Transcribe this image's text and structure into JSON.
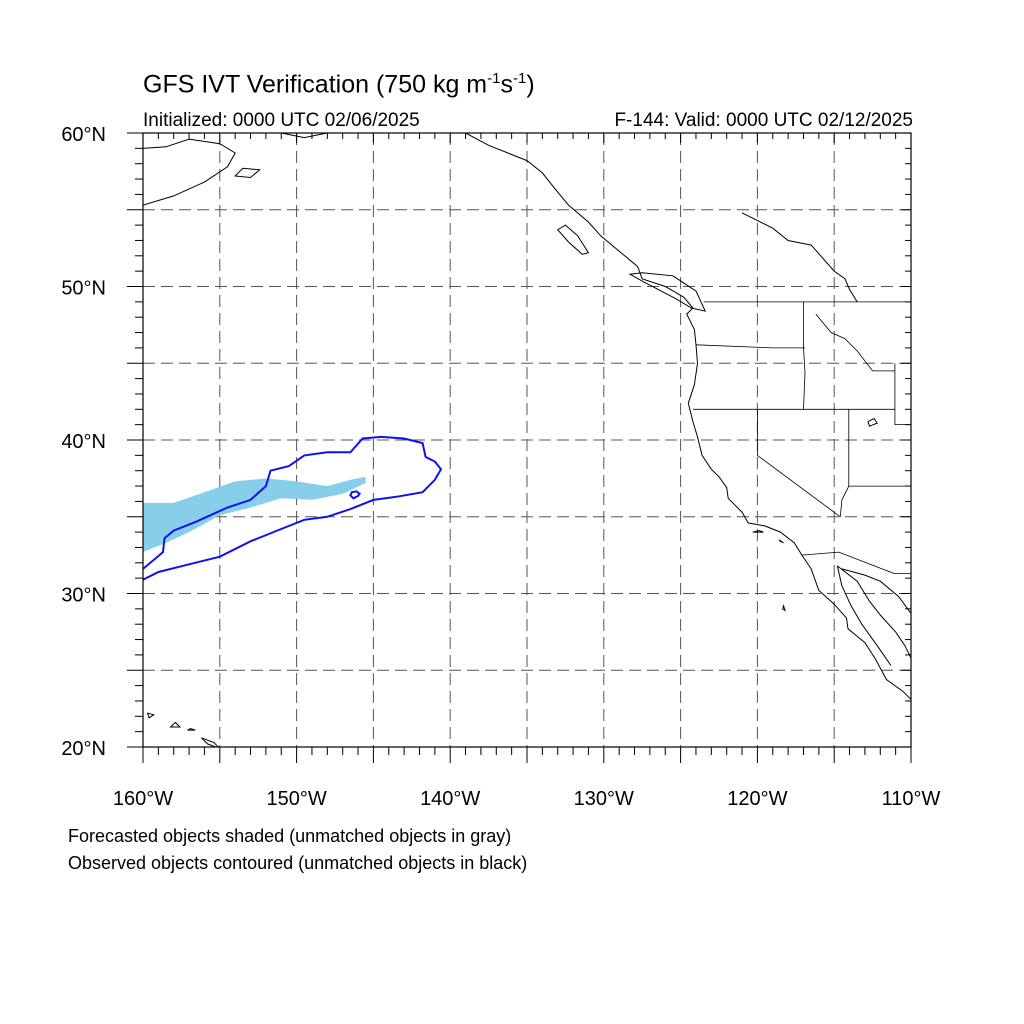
{
  "header": {
    "title_main": "GFS IVT Verification (750 kg m",
    "title_exp1": "-1",
    "title_mid": "s",
    "title_exp2": "-1",
    "title_end": ")",
    "initialized": "Initialized: 0000 UTC 02/06/2025",
    "valid": "F-144: Valid: 0000 UTC 02/12/2025"
  },
  "legend": {
    "line1": "Forecasted objects shaded (unmatched objects in gray)",
    "line2": "Observed objects contoured (unmatched objects in black)"
  },
  "map": {
    "lon_range": [
      -160,
      -110
    ],
    "lat_range": [
      20,
      60
    ],
    "lon_ticks": [
      {
        "value": -160,
        "label": "160°W"
      },
      {
        "value": -150,
        "label": "150°W"
      },
      {
        "value": -140,
        "label": "140°W"
      },
      {
        "value": -130,
        "label": "130°W"
      },
      {
        "value": -120,
        "label": "120°W"
      },
      {
        "value": -110,
        "label": "110°W"
      }
    ],
    "lat_ticks": [
      {
        "value": 20,
        "label": "20°N"
      },
      {
        "value": 30,
        "label": "30°N"
      },
      {
        "value": 40,
        "label": "40°N"
      },
      {
        "value": 50,
        "label": "50°N"
      },
      {
        "value": 60,
        "label": "60°N"
      }
    ],
    "gridline_lons": [
      -155,
      -150,
      -145,
      -140,
      -135,
      -130,
      -125,
      -120,
      -115
    ],
    "gridline_lats": [
      25,
      30,
      35,
      40,
      45,
      50,
      55
    ],
    "colors": {
      "forecast_fill": "#87ceeb",
      "observed_contour": "#1111ee",
      "coastline": "#000000",
      "grid": "#555555"
    },
    "forecast_object": [
      [
        -160,
        35.9
      ],
      [
        -158,
        35.9
      ],
      [
        -156,
        36.6
      ],
      [
        -154,
        37.3
      ],
      [
        -152,
        37.5
      ],
      [
        -150,
        37.3
      ],
      [
        -148,
        37.0
      ],
      [
        -146.5,
        37.4
      ],
      [
        -145.5,
        37.6
      ],
      [
        -145.5,
        37.2
      ],
      [
        -147,
        36.5
      ],
      [
        -149,
        36.1
      ],
      [
        -151,
        36.2
      ],
      [
        -153,
        35.6
      ],
      [
        -155,
        35.1
      ],
      [
        -157,
        34.0
      ],
      [
        -158.5,
        33.3
      ],
      [
        -160,
        32.7
      ]
    ],
    "observed_object": [
      [
        -160,
        30.9
      ],
      [
        -159,
        31.4
      ],
      [
        -157,
        31.9
      ],
      [
        -155,
        32.4
      ],
      [
        -153,
        33.4
      ],
      [
        -151,
        34.2
      ],
      [
        -149.5,
        34.8
      ],
      [
        -148,
        35.0
      ],
      [
        -146.5,
        35.5
      ],
      [
        -145,
        36.1
      ],
      [
        -143.5,
        36.3
      ],
      [
        -141.8,
        36.6
      ],
      [
        -141,
        37.4
      ],
      [
        -140.6,
        38.1
      ],
      [
        -141,
        38.6
      ],
      [
        -141.6,
        38.9
      ],
      [
        -141.8,
        39.8
      ],
      [
        -143,
        40.1
      ],
      [
        -144.5,
        40.2
      ],
      [
        -145.7,
        40.1
      ],
      [
        -146.5,
        39.2
      ],
      [
        -148,
        39.2
      ],
      [
        -149.5,
        39.0
      ],
      [
        -150.5,
        38.3
      ],
      [
        -151.7,
        38.0
      ],
      [
        -152,
        37.0
      ],
      [
        -153,
        36.1
      ],
      [
        -154.5,
        35.6
      ],
      [
        -156.5,
        34.7
      ],
      [
        -158,
        34.1
      ],
      [
        -158.6,
        33.6
      ],
      [
        -158.7,
        32.7
      ],
      [
        -160,
        31.6
      ],
      [
        -160.5,
        31.0
      ],
      [
        -160,
        30.9
      ]
    ],
    "observed_small_loop": [
      [
        -146.3,
        36.2
      ],
      [
        -146.0,
        36.35
      ],
      [
        -145.9,
        36.5
      ],
      [
        -146.1,
        36.65
      ],
      [
        -146.4,
        36.6
      ],
      [
        -146.5,
        36.4
      ],
      [
        -146.3,
        36.2
      ]
    ],
    "coast_main": [
      [
        -139,
        60
      ],
      [
        -137.5,
        59.2
      ],
      [
        -136,
        58.6
      ],
      [
        -135,
        58.2
      ],
      [
        -134,
        57.4
      ],
      [
        -133.2,
        56.4
      ],
      [
        -132.3,
        55.3
      ],
      [
        -131,
        54.2
      ],
      [
        -130.2,
        53.3
      ],
      [
        -129,
        52.3
      ],
      [
        -127.8,
        51.3
      ],
      [
        -127.5,
        50.5
      ],
      [
        -126,
        50.0
      ],
      [
        -124.8,
        49.3
      ],
      [
        -124.2,
        48.6
      ],
      [
        -124.6,
        48.2
      ],
      [
        -124.1,
        47.2
      ],
      [
        -124.0,
        46.2
      ],
      [
        -123.9,
        45.0
      ],
      [
        -124.1,
        43.6
      ],
      [
        -124.5,
        42.4
      ],
      [
        -124.2,
        41.2
      ],
      [
        -123.9,
        40.2
      ],
      [
        -123.6,
        39.0
      ],
      [
        -123.0,
        38.1
      ],
      [
        -122.5,
        37.6
      ],
      [
        -122.0,
        36.9
      ],
      [
        -121.9,
        36.2
      ],
      [
        -121.0,
        35.3
      ],
      [
        -120.6,
        34.6
      ],
      [
        -119.5,
        34.4
      ],
      [
        -118.5,
        34.0
      ],
      [
        -117.6,
        33.3
      ],
      [
        -117.1,
        32.5
      ],
      [
        -116.5,
        31.6
      ],
      [
        -116.0,
        30.2
      ],
      [
        -115.0,
        29.3
      ],
      [
        -114.2,
        28.4
      ],
      [
        -114.1,
        27.7
      ],
      [
        -113.0,
        26.8
      ],
      [
        -112.3,
        25.7
      ],
      [
        -111.6,
        24.4
      ],
      [
        -110.5,
        23.6
      ],
      [
        -110,
        23.1
      ]
    ],
    "coast_alaska": [
      [
        -160,
        55.3
      ],
      [
        -158,
        55.9
      ],
      [
        -156,
        56.8
      ],
      [
        -154.5,
        57.8
      ],
      [
        -154,
        58.7
      ],
      [
        -155,
        59.3
      ],
      [
        -157,
        59.6
      ],
      [
        -158.5,
        59.1
      ],
      [
        -160,
        59.0
      ]
    ],
    "coast_gulf": [
      [
        -151,
        60
      ],
      [
        -149.5,
        59.7
      ],
      [
        -148,
        60
      ],
      [
        -146,
        60.2
      ],
      [
        -144,
        60
      ]
    ],
    "coast_hudson": [
      [
        -121,
        54.8
      ],
      [
        -119,
        53.8
      ],
      [
        -118,
        53.0
      ],
      [
        -116.5,
        52.7
      ],
      [
        -115,
        51.0
      ],
      [
        -114.3,
        50.5
      ],
      [
        -114,
        49.8
      ],
      [
        -113.5,
        49.0
      ]
    ],
    "gulf_california": [
      [
        -114.8,
        31.8
      ],
      [
        -113.5,
        30.8
      ],
      [
        -112.7,
        29.5
      ],
      [
        -112.0,
        28.6
      ],
      [
        -111.0,
        27.5
      ],
      [
        -110.4,
        26.6
      ],
      [
        -110,
        25.8
      ]
    ],
    "baja_inner": [
      [
        -114.8,
        31.8
      ],
      [
        -114.5,
        30.5
      ],
      [
        -113.9,
        29.2
      ],
      [
        -113.2,
        28.0
      ],
      [
        -112.2,
        26.6
      ],
      [
        -111.3,
        25.3
      ]
    ],
    "mainland_mexico": [
      [
        -114.5,
        31.6
      ],
      [
        -113.0,
        31.2
      ],
      [
        -112.0,
        30.8
      ],
      [
        -110.8,
        29.8
      ],
      [
        -110,
        28.7
      ]
    ],
    "borders": [
      [
        [
          -123.5,
          49
        ],
        [
          -110,
          49
        ]
      ],
      [
        [
          -124.2,
          42
        ],
        [
          -111.05,
          42
        ]
      ],
      [
        [
          -120,
          42
        ],
        [
          -120,
          39
        ],
        [
          -114.6,
          35
        ]
      ],
      [
        [
          -117,
          49
        ],
        [
          -117,
          46.0
        ],
        [
          -116.9,
          44.4
        ],
        [
          -117,
          42
        ]
      ],
      [
        [
          -124.0,
          46.2
        ],
        [
          -119,
          46.0
        ],
        [
          -116.9,
          46.0
        ]
      ],
      [
        [
          -114.05,
          42
        ],
        [
          -114.05,
          37
        ],
        [
          -114.5,
          36.1
        ],
        [
          -114.6,
          35
        ]
      ],
      [
        [
          -114.05,
          37
        ],
        [
          -110,
          37
        ]
      ],
      [
        [
          -111.05,
          45
        ],
        [
          -111.05,
          41
        ],
        [
          -110,
          41
        ]
      ],
      [
        [
          -116.2,
          48.2
        ],
        [
          -115.2,
          47
        ],
        [
          -114.3,
          46.6
        ],
        [
          -113.5,
          45.8
        ],
        [
          -112.5,
          44.5
        ],
        [
          -111.05,
          44.5
        ]
      ],
      [
        [
          -117.1,
          32.5
        ],
        [
          -114.7,
          32.7
        ],
        [
          -111.1,
          31.3
        ],
        [
          -110,
          31.3
        ]
      ]
    ],
    "islands": [
      [
        [
          -125.5,
          50.7
        ],
        [
          -124.0,
          49.7
        ],
        [
          -123.4,
          48.4
        ],
        [
          -124.3,
          48.6
        ],
        [
          -125.3,
          49.2
        ],
        [
          -127.4,
          50.3
        ],
        [
          -128.3,
          50.8
        ],
        [
          -127.5,
          50.9
        ],
        [
          -125.5,
          50.7
        ]
      ],
      [
        [
          -132.5,
          54.0
        ],
        [
          -131.7,
          53.3
        ],
        [
          -131.0,
          52.2
        ],
        [
          -131.4,
          52.1
        ],
        [
          -132.3,
          52.9
        ],
        [
          -133.0,
          53.7
        ],
        [
          -132.5,
          54.0
        ]
      ],
      [
        [
          -156.2,
          20.6
        ],
        [
          -155.8,
          20.2
        ],
        [
          -155.0,
          19.9
        ],
        [
          -155.4,
          20.3
        ],
        [
          -156.2,
          20.6
        ]
      ],
      [
        [
          -157.9,
          21.6
        ],
        [
          -157.6,
          21.3
        ],
        [
          -158.2,
          21.3
        ],
        [
          -157.9,
          21.6
        ]
      ],
      [
        [
          -159.7,
          22.2
        ],
        [
          -159.3,
          22.1
        ],
        [
          -159.6,
          21.9
        ],
        [
          -159.7,
          22.2
        ]
      ],
      [
        [
          -156.9,
          21.2
        ],
        [
          -156.6,
          21.1
        ],
        [
          -157.1,
          21.1
        ],
        [
          -156.9,
          21.2
        ]
      ],
      [
        [
          -118.6,
          33.5
        ],
        [
          -118.3,
          33.3
        ],
        [
          -118.5,
          33.4
        ],
        [
          -118.6,
          33.5
        ]
      ],
      [
        [
          -119.9,
          34.1
        ],
        [
          -119.6,
          34.0
        ],
        [
          -120.3,
          34.0
        ],
        [
          -119.9,
          34.1
        ]
      ],
      [
        [
          -112.7,
          40.9
        ],
        [
          -112.2,
          41.1
        ],
        [
          -112.4,
          41.4
        ],
        [
          -112.8,
          41.2
        ],
        [
          -112.7,
          40.9
        ]
      ],
      [
        [
          -118.3,
          29.2
        ],
        [
          -118.2,
          28.9
        ],
        [
          -118.35,
          29.0
        ],
        [
          -118.3,
          29.2
        ]
      ],
      [
        [
          -153.5,
          57.7
        ],
        [
          -152.4,
          57.6
        ],
        [
          -153.0,
          57.1
        ],
        [
          -154.0,
          57.2
        ],
        [
          -153.5,
          57.7
        ]
      ]
    ]
  }
}
